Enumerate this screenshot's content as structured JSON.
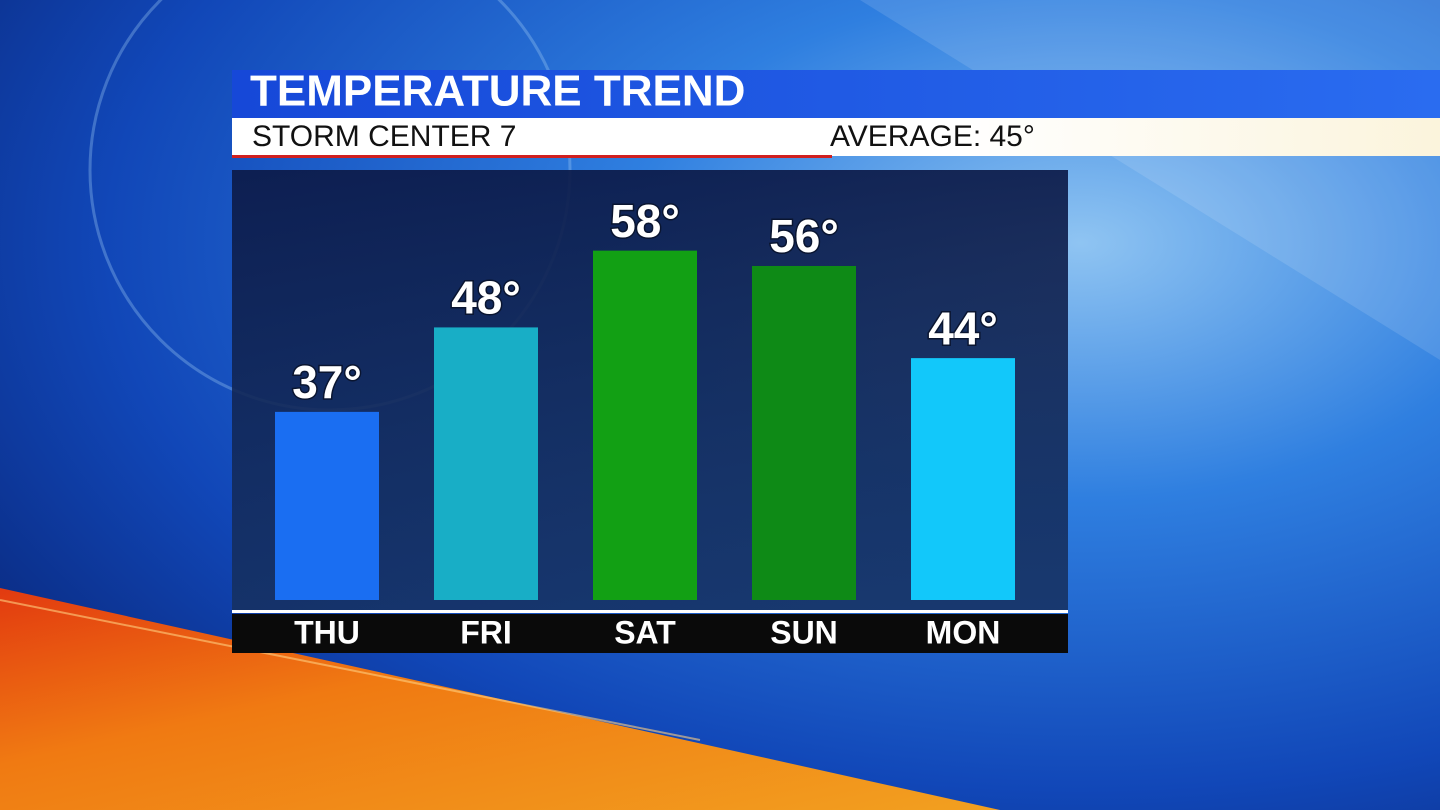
{
  "chart_data": {
    "type": "bar",
    "title": "TEMPERATURE TREND",
    "subtitle": "STORM CENTER 7",
    "annotation": "AVERAGE: 45°",
    "categories": [
      "THU",
      "FRI",
      "SAT",
      "SUN",
      "MON"
    ],
    "values": [
      37,
      48,
      58,
      56,
      44
    ],
    "value_labels": [
      "37°",
      "48°",
      "58°",
      "56°",
      "44°"
    ],
    "colors": [
      "#1a6ef2",
      "#18aec6",
      "#12a014",
      "#0e8a16",
      "#12c8fa"
    ],
    "ylim": [
      12.5,
      68.5
    ]
  }
}
